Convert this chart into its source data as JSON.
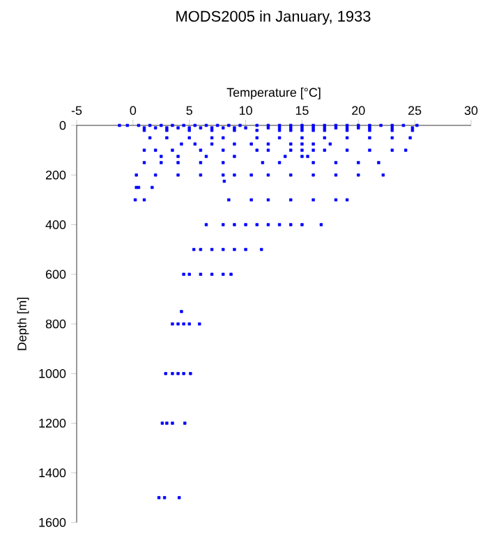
{
  "chart_data": {
    "type": "scatter",
    "title": "MODS2005 in January, 1933",
    "xlabel": "Temperature [°C]",
    "ylabel": "Depth [m]",
    "x": [
      -1.2,
      -0.5,
      0.5,
      1.5,
      2.5,
      3.5,
      4.5,
      5.5,
      6.5,
      7.5,
      8.5,
      9.5,
      11,
      12,
      13,
      14,
      15,
      16,
      17,
      18,
      19,
      20,
      21,
      22,
      23,
      24,
      25.2,
      1,
      2,
      3,
      4,
      5,
      6,
      7,
      8,
      9,
      10,
      12,
      13,
      14,
      15,
      16,
      17,
      18,
      19,
      20,
      21,
      23,
      24.8,
      1,
      3,
      5,
      7,
      9,
      11,
      13,
      14,
      15,
      16,
      17,
      19,
      21,
      23,
      24.8,
      1.5,
      3,
      5,
      7,
      8,
      11,
      13,
      15,
      17,
      19,
      21,
      23,
      24.6,
      4.3,
      5.5,
      7,
      9,
      10.5,
      12,
      14,
      15,
      16,
      17.5,
      1,
      2,
      3.5,
      6,
      8,
      11,
      12,
      14,
      15,
      16,
      17,
      19,
      21,
      23,
      24.2,
      2.5,
      4,
      6.5,
      9,
      13.5,
      15,
      15.5,
      1,
      2.5,
      4,
      6,
      8,
      11.5,
      13,
      16,
      18,
      20,
      21.8,
      0.3,
      2,
      4,
      6,
      8,
      9,
      10.5,
      12,
      14,
      16,
      18,
      20,
      22.2,
      8.1,
      0.3,
      0.5,
      1.7,
      0.2,
      1,
      8.5,
      10.5,
      12,
      14,
      16,
      18,
      19,
      6.5,
      8,
      9,
      10,
      11,
      12,
      13,
      14,
      15,
      16.7,
      5.4,
      6,
      7,
      8,
      9,
      10,
      11.4,
      4.5,
      5,
      6,
      7,
      8,
      8.7,
      4.3,
      3.5,
      4,
      4.5,
      5,
      5.9,
      2.9,
      3.5,
      4,
      4.5,
      5.1,
      2.6,
      3,
      3.5,
      4.6,
      2.3,
      2.8,
      4.1
    ],
    "values": [
      0,
      0,
      0,
      0,
      0,
      0,
      0,
      0,
      0,
      0,
      0,
      0,
      0,
      0,
      0,
      0,
      0,
      0,
      0,
      0,
      0,
      0,
      0,
      0,
      0,
      0,
      0,
      10,
      10,
      10,
      10,
      10,
      10,
      10,
      10,
      10,
      10,
      10,
      10,
      10,
      10,
      10,
      10,
      10,
      10,
      10,
      10,
      10,
      10,
      20,
      20,
      20,
      20,
      20,
      20,
      20,
      20,
      20,
      20,
      20,
      20,
      20,
      20,
      20,
      50,
      50,
      50,
      50,
      50,
      50,
      50,
      50,
      50,
      50,
      50,
      50,
      50,
      75,
      75,
      75,
      75,
      75,
      75,
      75,
      75,
      75,
      75,
      100,
      100,
      100,
      100,
      100,
      100,
      100,
      100,
      100,
      100,
      100,
      100,
      100,
      100,
      100,
      125,
      125,
      125,
      125,
      125,
      125,
      125,
      150,
      150,
      150,
      150,
      150,
      150,
      150,
      150,
      150,
      150,
      150,
      200,
      200,
      200,
      200,
      200,
      200,
      200,
      200,
      200,
      200,
      200,
      200,
      200,
      225,
      250,
      250,
      250,
      300,
      300,
      300,
      300,
      300,
      300,
      300,
      300,
      300,
      400,
      400,
      400,
      400,
      400,
      400,
      400,
      400,
      400,
      400,
      500,
      500,
      500,
      500,
      500,
      500,
      500,
      600,
      600,
      600,
      600,
      600,
      600,
      750,
      800,
      800,
      800,
      800,
      800,
      1000,
      1000,
      1000,
      1000,
      1000,
      1200,
      1200,
      1200,
      1200,
      1500,
      1500,
      1500
    ],
    "color": "#0000ff",
    "marker": "square",
    "xlim": [
      -5,
      30
    ],
    "xticks": [
      -5,
      0,
      5,
      10,
      15,
      20,
      25,
      30
    ],
    "ylim": [
      1600,
      0
    ],
    "yticks": [
      0,
      200,
      400,
      600,
      800,
      1000,
      1200,
      1400,
      1600
    ]
  }
}
